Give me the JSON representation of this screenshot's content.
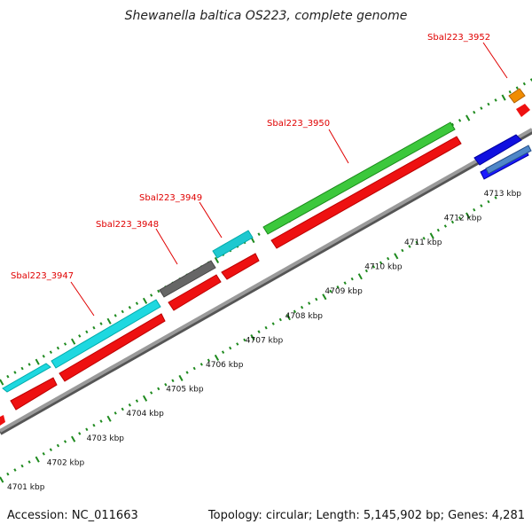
{
  "title": "Shewanella baltica OS223, complete genome",
  "footer": {
    "accession": "Accession: NC_011663",
    "topology": "Topology: circular; Length: 5,145,902 bp; Genes: 4,281"
  },
  "colors": {
    "cds": "#ee1111",
    "backbone": "#8a8a8a",
    "tick": "#1e8a1e",
    "label": "#e00000"
  },
  "scale_labels": [
    {
      "text": "4701 kbp",
      "kbp": 4701
    },
    {
      "text": "4702 kbp",
      "kbp": 4702
    },
    {
      "text": "4703 kbp",
      "kbp": 4703
    },
    {
      "text": "4704 kbp",
      "kbp": 4704
    },
    {
      "text": "4705 kbp",
      "kbp": 4705
    },
    {
      "text": "4706 kbp",
      "kbp": 4706
    },
    {
      "text": "4707 kbp",
      "kbp": 4707
    },
    {
      "text": "4708 kbp",
      "kbp": 4708
    },
    {
      "text": "4709 kbp",
      "kbp": 4709
    },
    {
      "text": "4710 kbp",
      "kbp": 4710
    },
    {
      "text": "4711 kbp",
      "kbp": 4711
    },
    {
      "text": "4712 kbp",
      "kbp": 4712
    },
    {
      "text": "4713 kbp",
      "kbp": 4713
    }
  ],
  "gene_labels": [
    "Sbal223_3947",
    "Sbal223_3948",
    "Sbal223_3949",
    "Sbal223_3950",
    "Sbal223_3952"
  ]
}
